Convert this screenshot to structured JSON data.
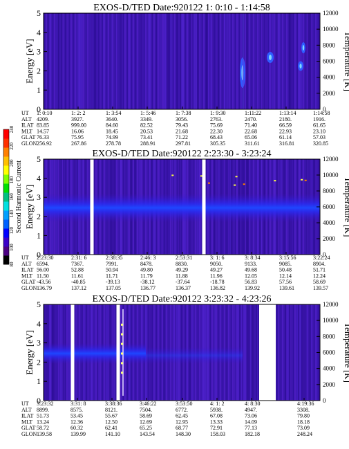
{
  "panels": [
    {
      "title": "EXOS-D/TED   Date:920122   1: 0:10 - 1:14:58",
      "y_ticks": [
        "0",
        "1",
        "2",
        "3",
        "4",
        "5"
      ],
      "t_ticks": [
        "0",
        "2000",
        "4000",
        "6000",
        "8000",
        "10000",
        "12000"
      ],
      "ylabel": "Energy [eV]",
      "rlabel": "Temperature [K]",
      "row_labels": [
        "UT",
        "ALT",
        "ILAT",
        "MLT",
        "GLAT",
        "GLON"
      ],
      "columns": [
        [
          "1: 0:10",
          "4209.",
          "83.85",
          "14.57",
          "76.33",
          "256.92"
        ],
        [
          "1: 2: 2",
          "3927.",
          "999.00",
          "16.06",
          "75.95",
          "267.86"
        ],
        [
          "1: 3:54",
          "3640.",
          "84.60",
          "18.45",
          "74.99",
          "278.78"
        ],
        [
          "1: 5:46",
          "3349.",
          "82.52",
          "20.53",
          "73.41",
          "288.91"
        ],
        [
          "1: 7:38",
          "3056.",
          "79.43",
          "21.68",
          "71.22",
          "297.81"
        ],
        [
          "1: 9:30",
          "2763.",
          "75.69",
          "22.30",
          "68.43",
          "305.35"
        ],
        [
          "1:11:22",
          "2470.",
          "71.40",
          "22.68",
          "65.06",
          "311.61"
        ],
        [
          "1:13:14",
          "2180.",
          "66.59",
          "22.93",
          "61.14",
          "316.81"
        ],
        [
          "1:14:58",
          "1916.",
          "61.65",
          "23.10",
          "57.03",
          "320.85"
        ]
      ],
      "gaps": []
    },
    {
      "title": "EXOS-D/TED   Date:920122   2:23:30 - 3:23:24",
      "y_ticks": [
        "0",
        "1",
        "2",
        "3",
        "4",
        "5"
      ],
      "t_ticks": [
        "0",
        "2000",
        "4000",
        "6000",
        "8000",
        "10000",
        "12000"
      ],
      "ylabel": "Energy [eV]",
      "rlabel": "Temperature [K]",
      "row_labels": [
        "UT",
        "ALT",
        "ILAT",
        "MLT",
        "GLAT",
        "GLON"
      ],
      "columns": [
        [
          "2:23:30",
          "6594.",
          "56.00",
          "11.50",
          "-43.56",
          "136.79"
        ],
        [
          "2:31: 6",
          "7367.",
          "52.88",
          "11.61",
          "-40.85",
          "137.12"
        ],
        [
          "2:38:35",
          "7991.",
          "50.94",
          "11.71",
          "-39.13",
          "137.05"
        ],
        [
          "2:46: 3",
          "8478.",
          "49.80",
          "11.79",
          "-38.12",
          "136.77"
        ],
        [
          "2:53:31",
          "8830.",
          "49.29",
          "11.88",
          "-37.64",
          "136.37"
        ],
        [
          "3: 1: 6",
          "9050.",
          "49.27",
          "11.96",
          "-18.78",
          "136.82"
        ],
        [
          "3: 8:34",
          "9133.",
          "49.68",
          "12.05",
          "56.83",
          "139.92"
        ],
        [
          "3:15:56",
          "9085.",
          "50.48",
          "12.14",
          "57.56",
          "139.61"
        ],
        [
          "3:22:24",
          "8904.",
          "51.71",
          "12.24",
          "58.69",
          "139.57"
        ]
      ],
      "gaps": [
        0.175,
        0.58
      ]
    },
    {
      "title": "EXOS-D/TED   Date:920122   3:23:32 - 4:23:26",
      "y_ticks": [
        "0",
        "1",
        "2",
        "3",
        "4",
        "5"
      ],
      "t_ticks": [
        "0",
        "2000",
        "4000",
        "6000",
        "8000",
        "10000",
        "12000"
      ],
      "ylabel": "Energy [eV]",
      "rlabel": "Temperature [K]",
      "row_labels": [
        "UT",
        "ALT",
        "ILAT",
        "MLT",
        "GLAT",
        "GLON"
      ],
      "columns": [
        [
          "3:23:32",
          "8899.",
          "51.73",
          "13.24",
          "58.72",
          "139.58"
        ],
        [
          "3:31: 8",
          "8575.",
          "53.45",
          "12.36",
          "60.32",
          "139.99"
        ],
        [
          "3:38:36",
          "8121.",
          "55.67",
          "12.50",
          "62.41",
          "141.10"
        ],
        [
          "3:46:22",
          "7504.",
          "58.69",
          "12.69",
          "65.25",
          "143.54"
        ],
        [
          "3:53:50",
          "6772.",
          "62.45",
          "12.95",
          "68.77",
          "148.30"
        ],
        [
          "4: 1: 2",
          "5938.",
          "67.08",
          "13.33",
          "72.91",
          "158.03"
        ],
        [
          "4: 8:30",
          "4947.",
          "73.06",
          "14.09",
          "77.13",
          "182.18"
        ],
        [
          "4:19:36",
          "3308.",
          "79.80",
          "18.18",
          "73.09",
          "248.24"
        ]
      ],
      "gaps": [
        0.105,
        0.27,
        0.81
      ]
    }
  ],
  "colorbar": {
    "label": "Second Harmonic Current",
    "ticks": [
      "80",
      "100",
      "120",
      "140",
      "160",
      "180",
      "200",
      "220",
      "240"
    ],
    "colors": [
      "#000000",
      "#4b0082",
      "#3a00c8",
      "#0000ff",
      "#0060ff",
      "#00a0ff",
      "#00e0e0",
      "#00c080",
      "#00e000",
      "#80ff00",
      "#ffff00",
      "#ffc000",
      "#ff8000",
      "#ff3000",
      "#ff0000"
    ]
  },
  "chart_data": [
    {
      "type": "heatmap",
      "title": "EXOS-D/TED   Date:920122   1: 0:10 - 1:14:58",
      "xlabel": "UT",
      "ylabel": "Energy [eV]",
      "ylim": [
        0,
        5
      ],
      "y2label": "Temperature [K]",
      "y2lim": [
        0,
        12000
      ],
      "x": [
        "1: 0:10",
        "1: 2: 2",
        "1: 3:54",
        "1: 5:46",
        "1: 7:38",
        "1: 9:30",
        "1:11:22",
        "1:13:14",
        "1:14:58"
      ],
      "color_label": "Second Harmonic Current",
      "color_range": [
        80,
        240
      ]
    },
    {
      "type": "heatmap",
      "title": "EXOS-D/TED   Date:920122   2:23:30 - 3:23:24",
      "xlabel": "UT",
      "ylabel": "Energy [eV]",
      "ylim": [
        0,
        5
      ],
      "y2label": "Temperature [K]",
      "y2lim": [
        0,
        12000
      ],
      "x": [
        "2:23:30",
        "2:31: 6",
        "2:38:35",
        "2:46: 3",
        "2:53:31",
        "3: 1: 6",
        "3: 8:34",
        "3:15:56",
        "3:22:24"
      ],
      "color_label": "Second Harmonic Current",
      "color_range": [
        80,
        240
      ]
    },
    {
      "type": "heatmap",
      "title": "EXOS-D/TED   Date:920122   3:23:32 - 4:23:26",
      "xlabel": "UT",
      "ylabel": "Energy [eV]",
      "ylim": [
        0,
        5
      ],
      "y2label": "Temperature [K]",
      "y2lim": [
        0,
        12000
      ],
      "x": [
        "3:23:32",
        "3:31: 8",
        "3:38:36",
        "3:46:22",
        "3:53:50",
        "4: 1: 2",
        "4: 8:30",
        "4:19:36"
      ],
      "color_label": "Second Harmonic Current",
      "color_range": [
        80,
        240
      ]
    }
  ]
}
